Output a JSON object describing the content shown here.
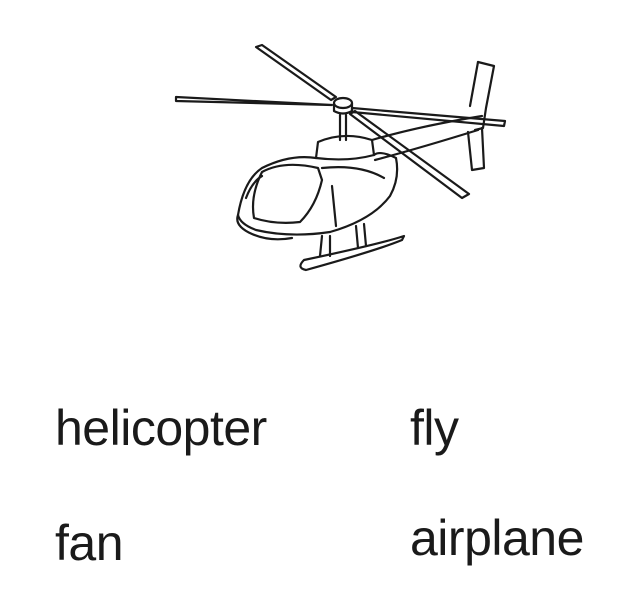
{
  "picture": {
    "icon": "helicopter-icon",
    "stroke_color": "#1a1a1a"
  },
  "choices": [
    {
      "label": "helicopter"
    },
    {
      "label": "fly"
    },
    {
      "label": "fan"
    },
    {
      "label": "airplane"
    }
  ]
}
